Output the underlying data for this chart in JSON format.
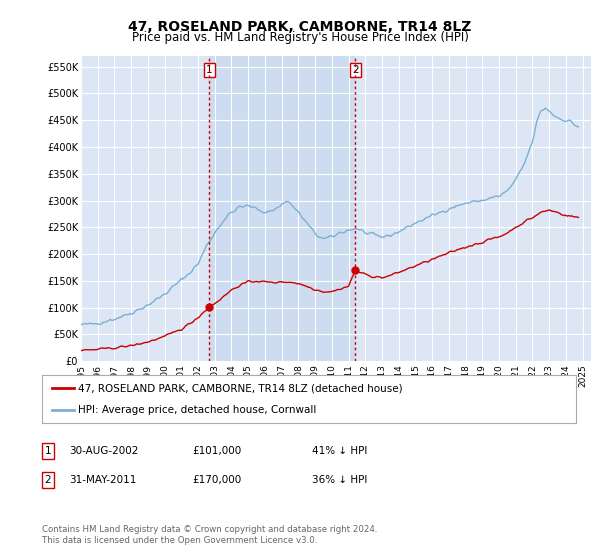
{
  "title": "47, ROSELAND PARK, CAMBORNE, TR14 8LZ",
  "subtitle": "Price paid vs. HM Land Registry's House Price Index (HPI)",
  "title_fontsize": 10,
  "subtitle_fontsize": 8.5,
  "background_color": "#ffffff",
  "plot_bg_color": "#dce6f5",
  "grid_color": "#ffffff",
  "ylabel_ticks": [
    "£0",
    "£50K",
    "£100K",
    "£150K",
    "£200K",
    "£250K",
    "£300K",
    "£350K",
    "£400K",
    "£450K",
    "£500K",
    "£550K"
  ],
  "ytick_values": [
    0,
    50000,
    100000,
    150000,
    200000,
    250000,
    300000,
    350000,
    400000,
    450000,
    500000,
    550000
  ],
  "ylim": [
    0,
    570000
  ],
  "xlim_start": 1995.0,
  "xlim_end": 2025.5,
  "hpi_color": "#7bafd4",
  "price_color": "#cc0000",
  "vline_color": "#cc0000",
  "vline_style": ":",
  "sale1_year": 2002.664,
  "sale1_price": 101000,
  "sale2_year": 2011.414,
  "sale2_price": 170000,
  "shade_color": "#c8d8f0",
  "legend_label_price": "47, ROSELAND PARK, CAMBORNE, TR14 8LZ (detached house)",
  "legend_label_hpi": "HPI: Average price, detached house, Cornwall",
  "table_rows": [
    {
      "num": "1",
      "date": "30-AUG-2002",
      "price": "£101,000",
      "pct": "41% ↓ HPI"
    },
    {
      "num": "2",
      "date": "31-MAY-2011",
      "price": "£170,000",
      "pct": "36% ↓ HPI"
    }
  ],
  "footer_text": "Contains HM Land Registry data © Crown copyright and database right 2024.\nThis data is licensed under the Open Government Licence v3.0."
}
